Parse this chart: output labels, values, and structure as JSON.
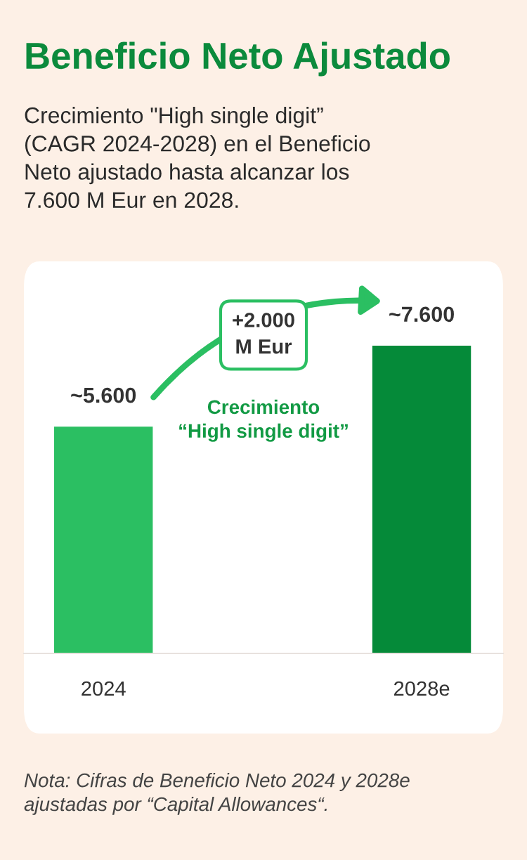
{
  "chart_data": {
    "type": "bar",
    "title": "Beneficio Neto Ajustado",
    "subtitle": "Crecimiento \"High single digit”\n(CAGR 2024-2028) en el Beneficio\nNeto ajustado hasta alcanzar los\n7.600 M Eur en 2028.",
    "categories": [
      "2024",
      "2028e"
    ],
    "values": [
      5600,
      7600
    ],
    "colors": [
      "#2bbf62",
      "#058a39"
    ],
    "value_labels": [
      "~5.600",
      "~7.600"
    ],
    "annotations": [
      "+2.000\nM Eur",
      "Crecimiento\n“High single digit”",
      "Nota: Cifras de Beneficio Neto 2024 y 2028e\najustadas por “Capital Allowances“."
    ],
    "tick_labels": "x",
    "grid": false,
    "legend": false
  }
}
